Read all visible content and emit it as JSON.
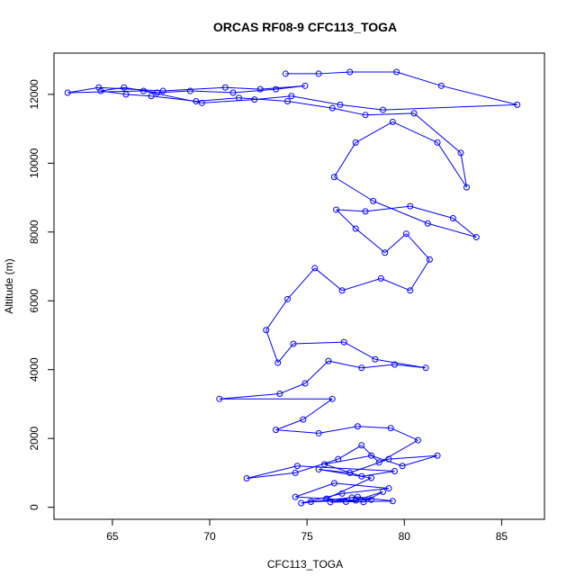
{
  "chart_data": {
    "type": "line",
    "title": "ORCAS RF08-9 CFC113_TOGA",
    "xlabel": "CFC113_TOGA",
    "ylabel": "Altitude (m)",
    "xlim": [
      62,
      87.2
    ],
    "ylim": [
      -350,
      13200
    ],
    "xticks": [
      65,
      70,
      75,
      80,
      85
    ],
    "yticks": [
      0,
      2000,
      4000,
      6000,
      8000,
      10000,
      12000
    ],
    "grid": false,
    "legend": "none",
    "colors": {
      "series": "#0000ff",
      "axes": "#000000"
    },
    "marker": "open-circle",
    "series": [
      {
        "values": [
          {
            "x": 77.0,
            "y": 160
          },
          {
            "x": 76.2,
            "y": 150
          },
          {
            "x": 79.4,
            "y": 180
          },
          {
            "x": 77.6,
            "y": 300
          },
          {
            "x": 75.2,
            "y": 160
          },
          {
            "x": 78.3,
            "y": 220
          },
          {
            "x": 77.3,
            "y": 280
          },
          {
            "x": 74.7,
            "y": 120
          },
          {
            "x": 76.8,
            "y": 400
          },
          {
            "x": 79.2,
            "y": 550
          },
          {
            "x": 76.4,
            "y": 700
          },
          {
            "x": 74.4,
            "y": 300
          },
          {
            "x": 77.5,
            "y": 200
          },
          {
            "x": 78.9,
            "y": 450
          },
          {
            "x": 77.9,
            "y": 150
          },
          {
            "x": 76.0,
            "y": 250
          },
          {
            "x": 78.3,
            "y": 850
          },
          {
            "x": 75.6,
            "y": 1100
          },
          {
            "x": 77.2,
            "y": 1000
          },
          {
            "x": 79.2,
            "y": 1400
          },
          {
            "x": 81.7,
            "y": 1500
          },
          {
            "x": 79.9,
            "y": 1200
          },
          {
            "x": 78.3,
            "y": 1500
          },
          {
            "x": 75.9,
            "y": 1250
          },
          {
            "x": 77.8,
            "y": 900
          },
          {
            "x": 79.5,
            "y": 1050
          },
          {
            "x": 74.5,
            "y": 1200
          },
          {
            "x": 71.9,
            "y": 840
          },
          {
            "x": 74.4,
            "y": 1000
          },
          {
            "x": 76.6,
            "y": 1400
          },
          {
            "x": 77.8,
            "y": 1800
          },
          {
            "x": 78.7,
            "y": 1300
          },
          {
            "x": 80.7,
            "y": 1950
          },
          {
            "x": 79.3,
            "y": 2300
          },
          {
            "x": 77.6,
            "y": 2350
          },
          {
            "x": 75.6,
            "y": 2150
          },
          {
            "x": 73.4,
            "y": 2250
          },
          {
            "x": 74.8,
            "y": 2550
          },
          {
            "x": 76.3,
            "y": 3150
          },
          {
            "x": 70.5,
            "y": 3150
          },
          {
            "x": 73.6,
            "y": 3300
          },
          {
            "x": 74.9,
            "y": 3600
          },
          {
            "x": 76.1,
            "y": 4250
          },
          {
            "x": 77.8,
            "y": 4050
          },
          {
            "x": 79.5,
            "y": 4150
          },
          {
            "x": 81.1,
            "y": 4050
          },
          {
            "x": 78.5,
            "y": 4300
          },
          {
            "x": 76.9,
            "y": 4800
          },
          {
            "x": 74.3,
            "y": 4750
          },
          {
            "x": 73.5,
            "y": 4200
          },
          {
            "x": 72.9,
            "y": 5150
          },
          {
            "x": 74.0,
            "y": 6050
          },
          {
            "x": 75.4,
            "y": 6950
          },
          {
            "x": 76.8,
            "y": 6300
          },
          {
            "x": 78.8,
            "y": 6650
          },
          {
            "x": 80.3,
            "y": 6300
          },
          {
            "x": 81.3,
            "y": 7200
          },
          {
            "x": 80.1,
            "y": 7950
          },
          {
            "x": 79.0,
            "y": 7400
          },
          {
            "x": 77.5,
            "y": 8100
          },
          {
            "x": 76.5,
            "y": 8650
          },
          {
            "x": 78.0,
            "y": 8600
          },
          {
            "x": 80.3,
            "y": 8750
          },
          {
            "x": 82.5,
            "y": 8400
          },
          {
            "x": 83.7,
            "y": 7850
          },
          {
            "x": 81.2,
            "y": 8250
          },
          {
            "x": 78.4,
            "y": 8900
          },
          {
            "x": 76.4,
            "y": 9600
          },
          {
            "x": 77.5,
            "y": 10600
          },
          {
            "x": 79.4,
            "y": 11200
          },
          {
            "x": 81.7,
            "y": 10600
          },
          {
            "x": 83.2,
            "y": 9300
          },
          {
            "x": 82.9,
            "y": 10300
          },
          {
            "x": 80.5,
            "y": 11450
          },
          {
            "x": 78.0,
            "y": 11400
          },
          {
            "x": 76.3,
            "y": 11600
          },
          {
            "x": 74.0,
            "y": 11800
          },
          {
            "x": 71.5,
            "y": 11900
          },
          {
            "x": 69.3,
            "y": 11800
          },
          {
            "x": 67.0,
            "y": 11950
          },
          {
            "x": 65.7,
            "y": 12000
          },
          {
            "x": 64.4,
            "y": 12100
          },
          {
            "x": 65.6,
            "y": 12200
          },
          {
            "x": 67.3,
            "y": 12050
          },
          {
            "x": 69.0,
            "y": 12100
          },
          {
            "x": 71.2,
            "y": 12050
          },
          {
            "x": 73.4,
            "y": 12150
          },
          {
            "x": 74.9,
            "y": 12250
          },
          {
            "x": 72.6,
            "y": 12150
          },
          {
            "x": 70.8,
            "y": 12200
          },
          {
            "x": 67.6,
            "y": 12100
          },
          {
            "x": 64.3,
            "y": 12200
          },
          {
            "x": 62.7,
            "y": 12050
          },
          {
            "x": 66.6,
            "y": 12100
          },
          {
            "x": 69.6,
            "y": 11750
          },
          {
            "x": 72.3,
            "y": 11850
          },
          {
            "x": 74.2,
            "y": 11950
          },
          {
            "x": 76.7,
            "y": 11700
          },
          {
            "x": 78.9,
            "y": 11550
          },
          {
            "x": 85.8,
            "y": 11700
          },
          {
            "x": 81.9,
            "y": 12250
          },
          {
            "x": 79.6,
            "y": 12650
          },
          {
            "x": 77.2,
            "y": 12650
          },
          {
            "x": 75.6,
            "y": 12600
          },
          {
            "x": 73.9,
            "y": 12600
          }
        ]
      }
    ]
  }
}
